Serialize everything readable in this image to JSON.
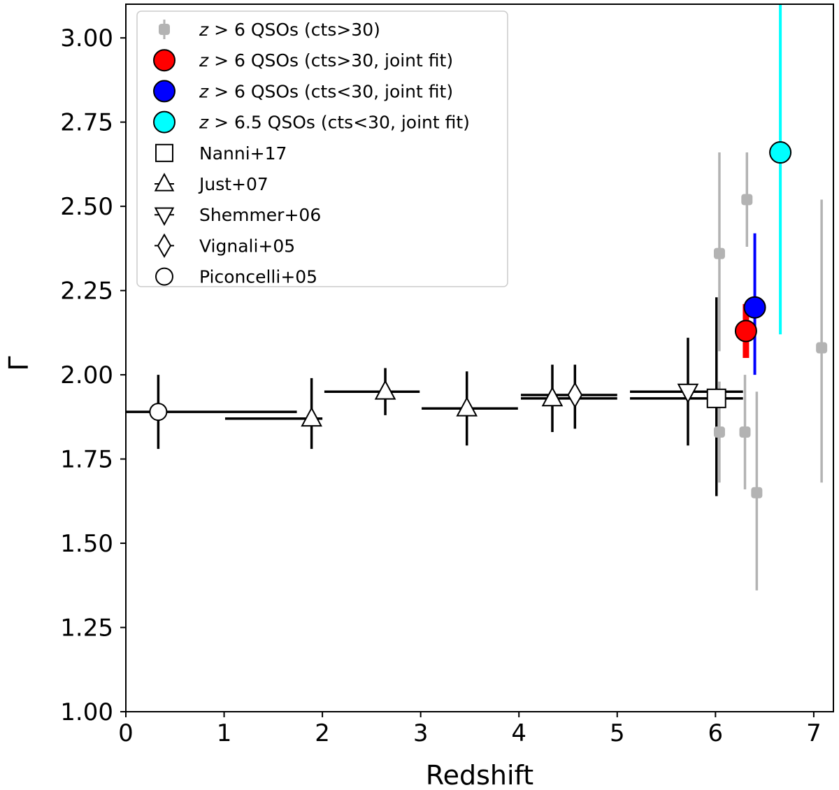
{
  "chart_data": {
    "type": "scatter",
    "title": "",
    "xlabel": "Redshift",
    "ylabel": "Γ",
    "xlim": [
      0,
      7.2
    ],
    "ylim": [
      1.0,
      3.1
    ],
    "xticks": [
      0,
      1,
      2,
      3,
      4,
      5,
      6,
      7
    ],
    "yticks": [
      1.0,
      1.25,
      1.5,
      1.75,
      2.0,
      2.25,
      2.5,
      2.75,
      3.0
    ],
    "xtick_labels": [
      "0",
      "1",
      "2",
      "3",
      "4",
      "5",
      "6",
      "7"
    ],
    "ytick_labels": [
      "1.00",
      "1.25",
      "1.50",
      "1.75",
      "2.00",
      "2.25",
      "2.50",
      "2.75",
      "3.00"
    ],
    "grid": false,
    "legend_position": "top-left",
    "series": [
      {
        "name": "z > 6 QSOs (cts>30)",
        "label_prefix": "z",
        "label_rest": " > 6 QSOs (cts>30)",
        "marker": "square-rounded",
        "color": "#b3b3b3",
        "edge": "#b3b3b3",
        "points": [
          {
            "x": 6.04,
            "y": 2.36,
            "ylo": 2.07,
            "yhi": 2.66
          },
          {
            "x": 6.04,
            "y": 1.83,
            "ylo": 1.68,
            "yhi": 1.98
          },
          {
            "x": 6.32,
            "y": 2.52,
            "ylo": 2.38,
            "yhi": 2.66
          },
          {
            "x": 6.3,
            "y": 1.83,
            "ylo": 1.66,
            "yhi": 2.0
          },
          {
            "x": 6.42,
            "y": 1.65,
            "ylo": 1.36,
            "yhi": 1.95
          },
          {
            "x": 7.08,
            "y": 2.08,
            "ylo": 1.68,
            "yhi": 2.52
          }
        ]
      },
      {
        "name": "z > 6 QSOs (cts>30, joint fit)",
        "label_prefix": "z",
        "label_rest": " > 6 QSOs (cts>30, joint fit)",
        "marker": "circle",
        "color": "#ff0000",
        "edge": "#000000",
        "points": [
          {
            "x": 6.31,
            "y": 2.13,
            "ylo": 2.05,
            "yhi": 2.21
          }
        ]
      },
      {
        "name": "z > 6 QSOs (cts<30, joint fit)",
        "label_prefix": "z",
        "label_rest": " > 6 QSOs (cts<30, joint fit)",
        "marker": "circle",
        "color": "#0000ff",
        "edge": "#000000",
        "points": [
          {
            "x": 6.4,
            "y": 2.2,
            "ylo": 2.0,
            "yhi": 2.42
          }
        ]
      },
      {
        "name": "z > 6.5 QSOs (cts<30, joint fit)",
        "label_prefix": "z",
        "label_rest": " > 6.5 QSOs (cts<30, joint fit)",
        "marker": "circle",
        "color": "#00ffff",
        "edge": "#000000",
        "points": [
          {
            "x": 6.66,
            "y": 2.66,
            "ylo": 2.12,
            "yhi": 3.1
          }
        ]
      },
      {
        "name": "Nanni+17",
        "label_prefix": "",
        "label_rest": "Nanni+17",
        "marker": "square",
        "color": "#ffffff",
        "edge": "#000000",
        "points": [
          {
            "x": 6.01,
            "y": 1.93,
            "ylo": 1.64,
            "yhi": 2.23,
            "xlo": 5.13,
            "xhi": 6.28
          }
        ]
      },
      {
        "name": "Just+07",
        "label_prefix": "",
        "label_rest": "Just+07",
        "marker": "triangle-up",
        "color": "#ffffff",
        "edge": "#000000",
        "points": [
          {
            "x": 1.89,
            "y": 1.87,
            "ylo": 1.78,
            "yhi": 1.99,
            "xlo": 1.01,
            "xhi": 2.0
          },
          {
            "x": 2.64,
            "y": 1.95,
            "ylo": 1.88,
            "yhi": 2.02,
            "xlo": 2.02,
            "xhi": 2.99
          },
          {
            "x": 3.47,
            "y": 1.9,
            "ylo": 1.79,
            "yhi": 2.01,
            "xlo": 3.01,
            "xhi": 3.99
          },
          {
            "x": 4.34,
            "y": 1.93,
            "ylo": 1.83,
            "yhi": 2.03,
            "xlo": 4.02,
            "xhi": 5.0
          }
        ]
      },
      {
        "name": "Shemmer+06",
        "label_prefix": "",
        "label_rest": "Shemmer+06",
        "marker": "triangle-down",
        "color": "#ffffff",
        "edge": "#000000",
        "points": [
          {
            "x": 5.72,
            "y": 1.95,
            "ylo": 1.79,
            "yhi": 2.11,
            "xlo": 5.13,
            "xhi": 6.28
          }
        ]
      },
      {
        "name": "Vignali+05",
        "label_prefix": "",
        "label_rest": "Vignali+05",
        "marker": "diamond",
        "color": "#ffffff",
        "edge": "#000000",
        "points": [
          {
            "x": 4.57,
            "y": 1.94,
            "ylo": 1.84,
            "yhi": 2.03,
            "xlo": 4.02,
            "xhi": 5.0
          }
        ]
      },
      {
        "name": "Piconcelli+05",
        "label_prefix": "",
        "label_rest": "Piconcelli+05",
        "marker": "circle",
        "color": "#ffffff",
        "edge": "#000000",
        "points": [
          {
            "x": 0.33,
            "y": 1.89,
            "ylo": 1.78,
            "yhi": 2.0,
            "xlo": 0.0,
            "xhi": 1.74
          }
        ]
      }
    ]
  }
}
